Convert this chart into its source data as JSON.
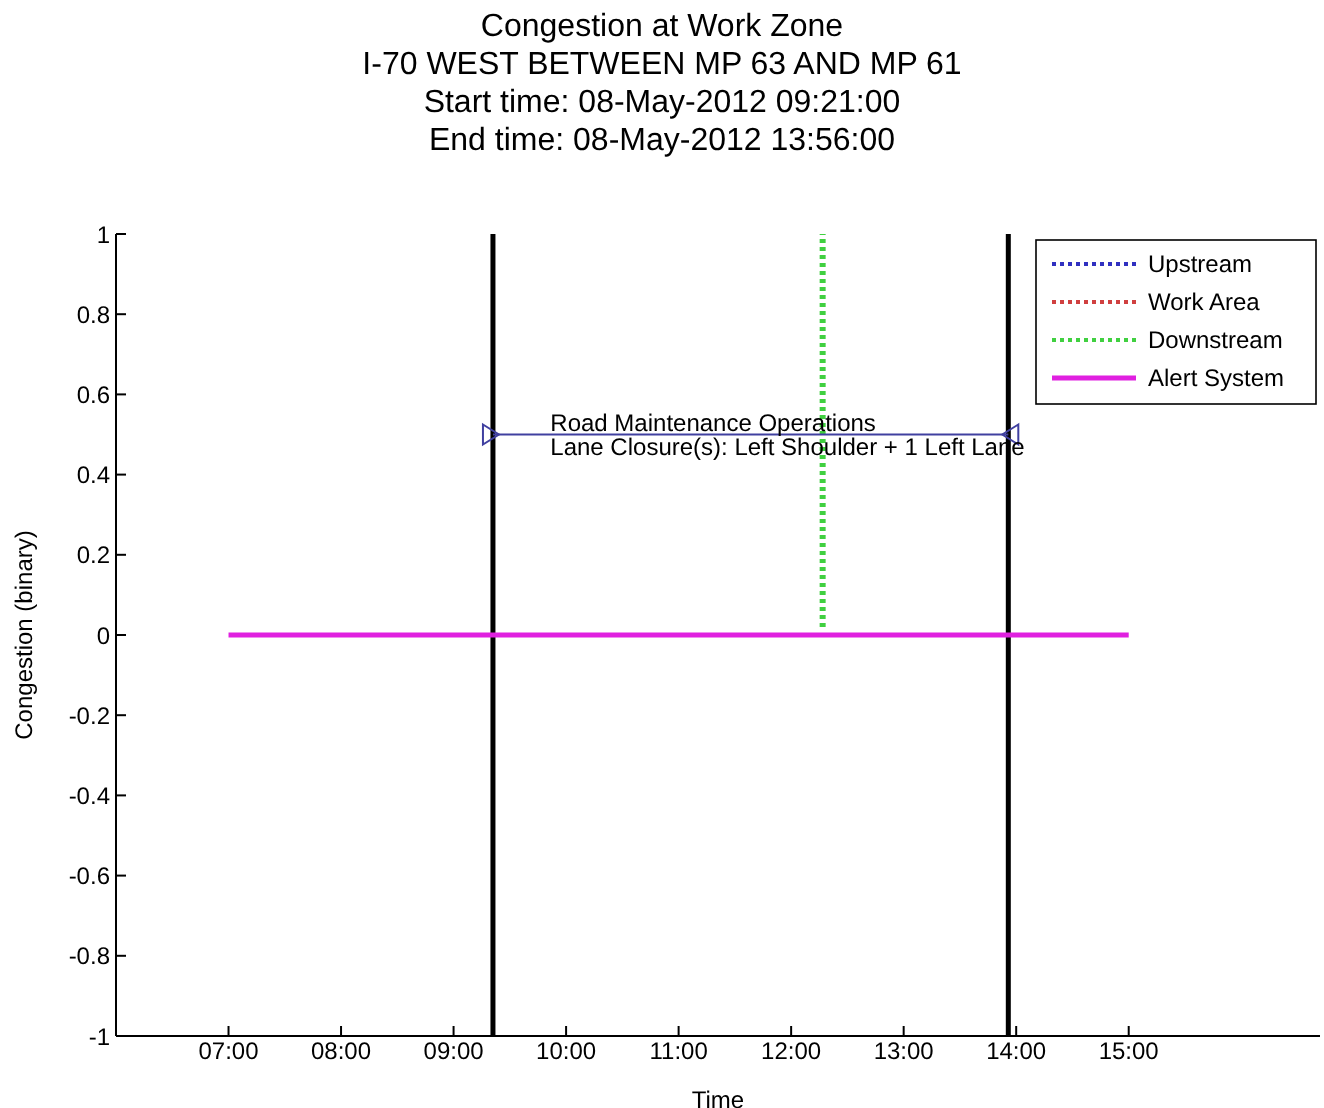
{
  "chart_data": {
    "type": "line",
    "title": "Congestion at Work Zone",
    "subtitle": "I-70 WEST BETWEEN MP 63 AND MP 61\nStart time: 08-May-2012 09:21:00\nEnd time: 08-May-2012 13:56:00",
    "xlabel": "Time",
    "ylabel": "Congestion (binary)",
    "xlim": [
      6,
      16.7
    ],
    "xticks": [
      {
        "value": 7,
        "label": "07:00"
      },
      {
        "value": 8,
        "label": "08:00"
      },
      {
        "value": 9,
        "label": "09:00"
      },
      {
        "value": 10,
        "label": "10:00"
      },
      {
        "value": 11,
        "label": "11:00"
      },
      {
        "value": 12,
        "label": "12:00"
      },
      {
        "value": 13,
        "label": "13:00"
      },
      {
        "value": 14,
        "label": "14:00"
      },
      {
        "value": 15,
        "label": "15:00"
      }
    ],
    "ylim": [
      -1,
      1
    ],
    "yticks": [
      -1,
      -0.8,
      -0.6,
      -0.4,
      -0.2,
      0,
      0.2,
      0.4,
      0.6,
      0.8,
      1
    ],
    "series": [
      {
        "name": "Upstream",
        "color": "#3030c0",
        "line_style": "dotted"
      },
      {
        "name": "Work Area",
        "color": "#d04040",
        "line_style": "dotted"
      },
      {
        "name": "Downstream",
        "color": "#40d040",
        "line_style": "dotted",
        "x": [
          12.28,
          12.28
        ],
        "values": [
          0.02,
          1
        ]
      },
      {
        "name": "Alert System",
        "color": "#e020e0",
        "line_style": "solid",
        "x": [
          7,
          15
        ],
        "values": [
          0,
          0
        ]
      },
      {
        "color": "#4040a0",
        "line_style": "solid",
        "marker": "triangle",
        "x": [
          9.35,
          13.93
        ],
        "values": [
          0.5,
          0.5
        ]
      }
    ],
    "ref_lines": [
      {
        "axis": "x",
        "value": 9.35,
        "color": "#000000"
      },
      {
        "axis": "x",
        "value": 13.93,
        "color": "#000000"
      }
    ],
    "annotations": [
      {
        "text": "Road Maintenance Operations",
        "x": 9.86,
        "y": 0.5
      },
      {
        "text": "Lane Closure(s): Left Shoulder + 1 Left Lane",
        "x": 9.86,
        "y": 0.5
      }
    ],
    "legend": "top right",
    "grid": false,
    "marker": "none"
  }
}
